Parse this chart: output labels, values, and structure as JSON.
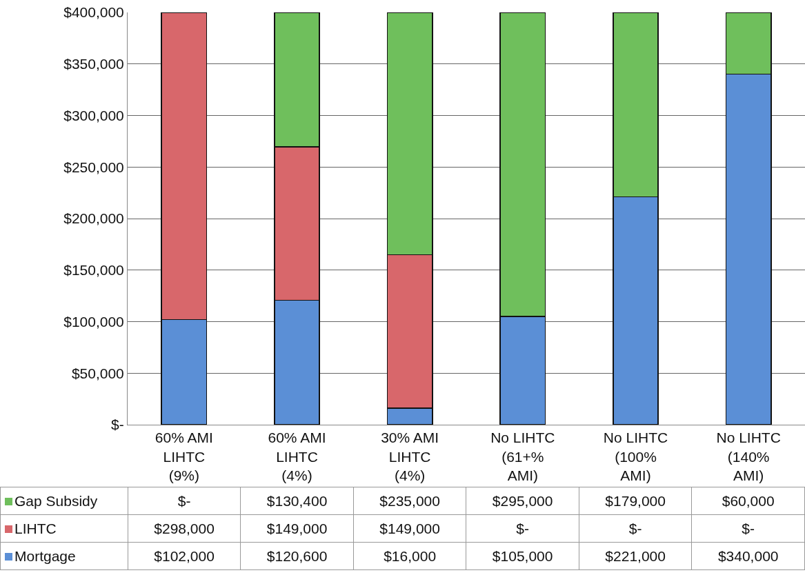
{
  "chart_data": {
    "type": "bar",
    "stacked": true,
    "categories": [
      "60% AMI LIHTC (9%)",
      "60% AMI LIHTC (4%)",
      "30% AMI LIHTC (4%)",
      "No LIHTC (61+% AMI)",
      "No LIHTC (100% AMI)",
      "No LIHTC (140% AMI)"
    ],
    "series": [
      {
        "name": "Mortgage",
        "color": "#5b8fd6",
        "values": [
          102000,
          120600,
          16000,
          105000,
          221000,
          340000
        ],
        "value_labels": [
          "$102,000",
          "$120,600",
          "$16,000",
          "$105,000",
          "$221,000",
          "$340,000"
        ]
      },
      {
        "name": "LIHTC",
        "color": "#d8676b",
        "values": [
          298000,
          149000,
          149000,
          0,
          0,
          0
        ],
        "value_labels": [
          "$298,000",
          "$149,000",
          "$149,000",
          "$-",
          "$-",
          "$-"
        ]
      },
      {
        "name": "Gap Subsidy",
        "color": "#6fbf5c",
        "values": [
          0,
          130400,
          235000,
          295000,
          179000,
          60000
        ],
        "value_labels": [
          "$-",
          "$130,400",
          "$235,000",
          "$295,000",
          "$179,000",
          "$60,000"
        ]
      }
    ],
    "ylim": [
      0,
      400000
    ],
    "yticks": [
      {
        "value": 0,
        "label": "$-"
      },
      {
        "value": 50000,
        "label": "$50,000"
      },
      {
        "value": 100000,
        "label": "$100,000"
      },
      {
        "value": 150000,
        "label": "$150,000"
      },
      {
        "value": 200000,
        "label": "$200,000"
      },
      {
        "value": 250000,
        "label": "$250,000"
      },
      {
        "value": 300000,
        "label": "$300,000"
      },
      {
        "value": 350000,
        "label": "$350,000"
      },
      {
        "value": 400000,
        "label": "$400,000"
      }
    ],
    "grid": "y",
    "legend": "bottom left"
  }
}
